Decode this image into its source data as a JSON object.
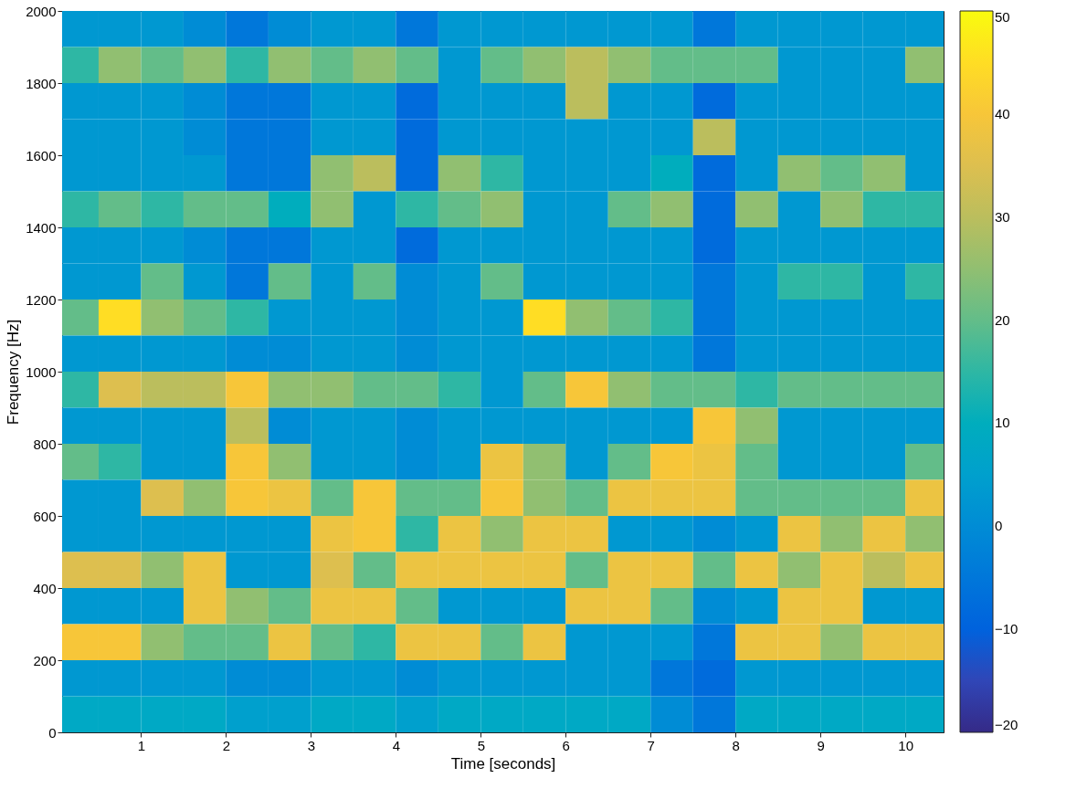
{
  "chart_data": {
    "type": "heatmap",
    "xlabel": "Time [seconds]",
    "ylabel": "Frequency [Hz]",
    "x": [
      0.25,
      0.75,
      1.25,
      1.75,
      2.25,
      2.75,
      3.25,
      3.75,
      4.25,
      4.75,
      5.25,
      5.75,
      6.25,
      6.75,
      7.25,
      7.75,
      8.25,
      8.75,
      9.25,
      9.75,
      10.25
    ],
    "y": [
      1950,
      1850,
      1750,
      1650,
      1550,
      1450,
      1350,
      1250,
      1150,
      1050,
      950,
      850,
      750,
      650,
      550,
      450,
      350,
      250,
      150,
      50
    ],
    "cells": [
      [
        3,
        3,
        3,
        0,
        -5,
        0,
        3,
        3,
        -5,
        3,
        3,
        3,
        3,
        3,
        3,
        -5,
        3,
        3,
        3,
        3,
        3
      ],
      [
        15,
        25,
        20,
        25,
        15,
        25,
        20,
        25,
        20,
        3,
        20,
        25,
        30,
        25,
        20,
        20,
        20,
        3,
        3,
        3,
        25
      ],
      [
        3,
        3,
        3,
        0,
        -5,
        -5,
        3,
        3,
        -8,
        3,
        3,
        3,
        30,
        3,
        3,
        -8,
        3,
        3,
        3,
        3,
        3
      ],
      [
        3,
        3,
        3,
        0,
        -5,
        -5,
        3,
        3,
        -8,
        3,
        3,
        3,
        3,
        3,
        3,
        30,
        3,
        3,
        3,
        3,
        3
      ],
      [
        3,
        3,
        3,
        3,
        -5,
        -5,
        25,
        30,
        -8,
        25,
        15,
        3,
        3,
        3,
        10,
        -8,
        3,
        25,
        20,
        25,
        3
      ],
      [
        15,
        20,
        15,
        20,
        20,
        10,
        25,
        3,
        15,
        20,
        25,
        3,
        3,
        20,
        25,
        -8,
        25,
        3,
        25,
        15,
        15
      ],
      [
        3,
        3,
        3,
        0,
        -5,
        -5,
        3,
        3,
        -8,
        3,
        3,
        3,
        3,
        3,
        3,
        -8,
        3,
        3,
        3,
        3,
        3
      ],
      [
        3,
        3,
        20,
        3,
        -5,
        20,
        3,
        20,
        0,
        3,
        20,
        3,
        3,
        3,
        3,
        -5,
        3,
        15,
        15,
        3,
        15
      ],
      [
        20,
        45,
        25,
        20,
        15,
        3,
        3,
        3,
        0,
        3,
        3,
        45,
        25,
        20,
        15,
        -5,
        3,
        3,
        3,
        3,
        3
      ],
      [
        3,
        3,
        3,
        3,
        0,
        0,
        3,
        3,
        0,
        3,
        3,
        3,
        3,
        3,
        3,
        -5,
        3,
        3,
        3,
        3,
        3
      ],
      [
        15,
        35,
        30,
        30,
        40,
        25,
        25,
        20,
        20,
        15,
        3,
        20,
        40,
        25,
        20,
        20,
        15,
        20,
        20,
        20,
        20
      ],
      [
        3,
        3,
        3,
        3,
        30,
        0,
        3,
        3,
        0,
        3,
        3,
        3,
        3,
        3,
        3,
        40,
        25,
        3,
        3,
        3,
        3
      ],
      [
        20,
        15,
        3,
        3,
        40,
        25,
        3,
        3,
        0,
        3,
        38,
        25,
        3,
        20,
        40,
        38,
        20,
        3,
        3,
        3,
        20
      ],
      [
        3,
        3,
        35,
        25,
        40,
        38,
        20,
        40,
        20,
        20,
        40,
        25,
        20,
        38,
        38,
        38,
        20,
        20,
        20,
        20,
        38
      ],
      [
        3,
        3,
        3,
        3,
        3,
        3,
        38,
        40,
        15,
        38,
        25,
        38,
        38,
        3,
        3,
        0,
        3,
        38,
        25,
        38,
        25
      ],
      [
        35,
        35,
        25,
        38,
        3,
        3,
        35,
        20,
        38,
        38,
        38,
        38,
        20,
        38,
        38,
        20,
        38,
        25,
        38,
        30,
        38
      ],
      [
        3,
        3,
        3,
        38,
        25,
        20,
        38,
        38,
        20,
        3,
        3,
        3,
        38,
        38,
        20,
        0,
        3,
        38,
        38,
        3,
        3
      ],
      [
        40,
        40,
        25,
        20,
        20,
        38,
        20,
        15,
        38,
        38,
        20,
        38,
        3,
        3,
        3,
        -5,
        38,
        38,
        25,
        38,
        38
      ],
      [
        3,
        3,
        3,
        3,
        0,
        0,
        3,
        3,
        0,
        3,
        3,
        3,
        3,
        3,
        -5,
        -8,
        3,
        3,
        3,
        3,
        3
      ],
      [
        8,
        8,
        8,
        8,
        5,
        5,
        8,
        8,
        5,
        8,
        8,
        8,
        8,
        8,
        0,
        -5,
        8,
        8,
        8,
        8,
        8
      ]
    ],
    "xlim": [
      0.07,
      10.45
    ],
    "xticks": [
      1,
      2,
      3,
      4,
      5,
      6,
      7,
      8,
      9,
      10
    ],
    "ylim": [
      0,
      2000
    ],
    "yticks": [
      0,
      200,
      400,
      600,
      800,
      1000,
      1200,
      1400,
      1600,
      1800,
      2000
    ],
    "clim": [
      -20,
      50
    ],
    "cticks": [
      -20,
      -10,
      0,
      10,
      20,
      30,
      40,
      50
    ]
  }
}
